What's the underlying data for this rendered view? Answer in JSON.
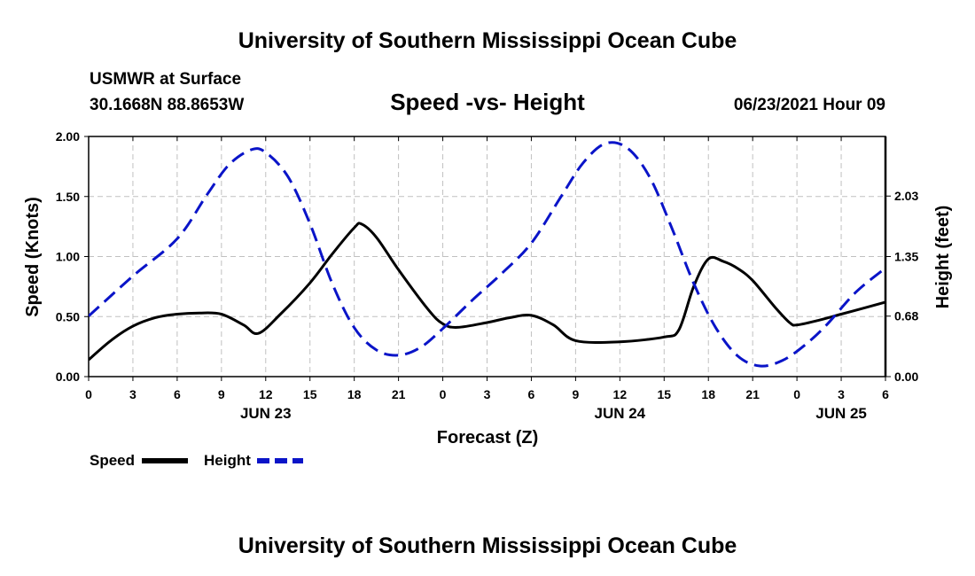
{
  "header": {
    "top_title": "University of Southern Mississippi Ocean Cube",
    "bottom_title": "University of Southern Mississippi Ocean Cube",
    "station": "USMWR at Surface",
    "coords": "30.1668N  88.8653W",
    "datetime": "06/23/2021 Hour 09"
  },
  "colors": {
    "speed": "#000000",
    "height": "#0a14c8",
    "grid": "#c0c0c0"
  },
  "chart_data": {
    "type": "line",
    "title": "Speed -vs- Height",
    "xlabel": "Forecast (Z)",
    "ylabel_left": "Speed (Knots)",
    "ylabel_right": "Height (feet)",
    "grid": true,
    "legend_position": "bottom-left",
    "x_unit": "hours since 06/23 00Z",
    "xlim": [
      0,
      54
    ],
    "ylim_left": [
      0,
      2.0
    ],
    "ylim_right": [
      0,
      2.7
    ],
    "left_ticks": [
      "0.00",
      "0.50",
      "1.00",
      "1.50",
      "2.00"
    ],
    "left_tick_values": [
      0,
      0.5,
      1.0,
      1.5,
      2.0
    ],
    "right_ticks": [
      "0.00",
      "0.68",
      "1.35",
      "2.03"
    ],
    "right_tick_values": [
      0,
      0.68,
      1.35,
      2.03
    ],
    "x_tick_values": [
      0,
      3,
      6,
      9,
      12,
      15,
      18,
      21,
      24,
      27,
      30,
      33,
      36,
      39,
      42,
      45,
      48,
      51,
      54
    ],
    "x_tick_labels": [
      "0",
      "3",
      "6",
      "9",
      "12",
      "15",
      "18",
      "21",
      "0",
      "3",
      "6",
      "9",
      "12",
      "15",
      "18",
      "21",
      "0",
      "3",
      "6"
    ],
    "date_labels": [
      {
        "text": "JUN 23",
        "x": 12
      },
      {
        "text": "JUN 24",
        "x": 36
      },
      {
        "text": "JUN 25",
        "x": 51
      }
    ],
    "series": [
      {
        "name": "Speed",
        "axis": "left",
        "style": "solid",
        "x": [
          0,
          1.5,
          3,
          4.5,
          6,
          7.5,
          9,
          10.5,
          11.5,
          13,
          15,
          16.5,
          18,
          18.5,
          19.5,
          21,
          23,
          24,
          25,
          27,
          28.5,
          30,
          31.5,
          33,
          36,
          39,
          40,
          41,
          42,
          43,
          44,
          45,
          46.5,
          47.5,
          48,
          49.5,
          51,
          52.5,
          54
        ],
        "values": [
          0.14,
          0.3,
          0.42,
          0.49,
          0.52,
          0.53,
          0.52,
          0.43,
          0.36,
          0.52,
          0.78,
          1.02,
          1.24,
          1.27,
          1.16,
          0.89,
          0.56,
          0.44,
          0.41,
          0.45,
          0.49,
          0.51,
          0.43,
          0.3,
          0.29,
          0.33,
          0.39,
          0.75,
          0.98,
          0.96,
          0.9,
          0.8,
          0.58,
          0.45,
          0.43,
          0.47,
          0.52,
          0.57,
          0.62
        ]
      },
      {
        "name": "Height",
        "axis": "right",
        "style": "dashed",
        "x": [
          0,
          3,
          6,
          8,
          9.5,
          11,
          12,
          13.5,
          15,
          16.5,
          18,
          19.5,
          21,
          22.5,
          24,
          26,
          28,
          30,
          32,
          33.5,
          35,
          36.5,
          38,
          39.5,
          41,
          42.5,
          44,
          45.5,
          47,
          48.5,
          50,
          52,
          54
        ],
        "values": [
          0.68,
          1.13,
          1.55,
          2.04,
          2.38,
          2.55,
          2.52,
          2.25,
          1.72,
          1.05,
          0.55,
          0.3,
          0.24,
          0.33,
          0.54,
          0.86,
          1.16,
          1.5,
          2.02,
          2.4,
          2.62,
          2.57,
          2.25,
          1.68,
          1.05,
          0.55,
          0.23,
          0.12,
          0.18,
          0.35,
          0.58,
          0.95,
          1.22
        ]
      }
    ]
  }
}
